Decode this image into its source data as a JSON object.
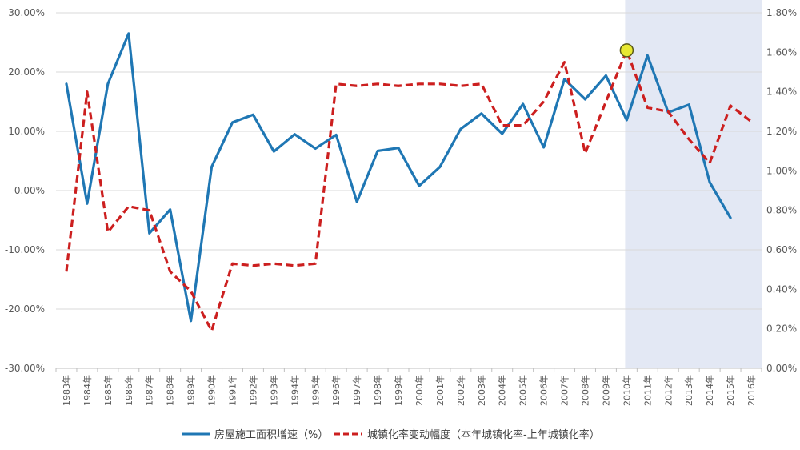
{
  "chart_data": {
    "type": "line",
    "categories": [
      "1983年",
      "1984年",
      "1985年",
      "1986年",
      "1987年",
      "1988年",
      "1989年",
      "1990年",
      "1991年",
      "1992年",
      "1993年",
      "1994年",
      "1995年",
      "1996年",
      "1997年",
      "1998年",
      "1999年",
      "2000年",
      "2001年",
      "2002年",
      "2003年",
      "2004年",
      "2005年",
      "2006年",
      "2007年",
      "2008年",
      "2009年",
      "2010年",
      "2011年",
      "2012年",
      "2013年",
      "2014年",
      "2015年",
      "2016年"
    ],
    "y_left": {
      "ylim": [
        -30,
        30
      ],
      "ticks": [
        "30.00%",
        "20.00%",
        "10.00%",
        "0.00%",
        "-10.00%",
        "-20.00%",
        "-30.00%"
      ]
    },
    "y_right": {
      "ylim": [
        0,
        1.8
      ],
      "ticks": [
        "1.80%",
        "1.60%",
        "1.40%",
        "1.20%",
        "1.00%",
        "0.80%",
        "0.60%",
        "0.40%",
        "0.20%",
        "0.00%"
      ]
    },
    "series": [
      {
        "name": "房屋施工面积增速（%）",
        "axis": "left",
        "color": "#1f77b4",
        "style": "solid",
        "values": [
          18.0,
          -2.2,
          18.0,
          26.5,
          -7.2,
          -3.2,
          -22.0,
          4.0,
          11.5,
          12.8,
          6.6,
          9.5,
          7.1,
          9.4,
          -1.9,
          6.7,
          7.2,
          0.8,
          4.0,
          10.4,
          13.0,
          9.6,
          14.6,
          7.3,
          18.8,
          15.4,
          19.4,
          11.9,
          22.8,
          13.2,
          14.5,
          1.4,
          -4.6,
          null
        ]
      },
      {
        "name": "城镇化率变动幅度（本年城镇化率-上年城镇化率）",
        "axis": "right",
        "color": "#cc1f1f",
        "style": "dashed",
        "values": [
          0.49,
          1.4,
          0.69,
          0.82,
          0.8,
          0.49,
          0.39,
          0.19,
          0.53,
          0.52,
          0.53,
          0.52,
          0.53,
          1.44,
          1.43,
          1.44,
          1.43,
          1.44,
          1.44,
          1.43,
          1.44,
          1.23,
          1.23,
          1.35,
          1.55,
          1.09,
          1.35,
          1.61,
          1.32,
          1.3,
          1.16,
          1.04,
          1.33,
          1.25
        ]
      }
    ],
    "highlight_region": {
      "from": "2010年",
      "to": "2016年",
      "color": "#e3e8f4"
    },
    "highlight_point": {
      "category": "2010年",
      "axis": "right",
      "value": 1.61,
      "color": "#e8e832"
    },
    "grid": true,
    "legend_position": "bottom"
  }
}
